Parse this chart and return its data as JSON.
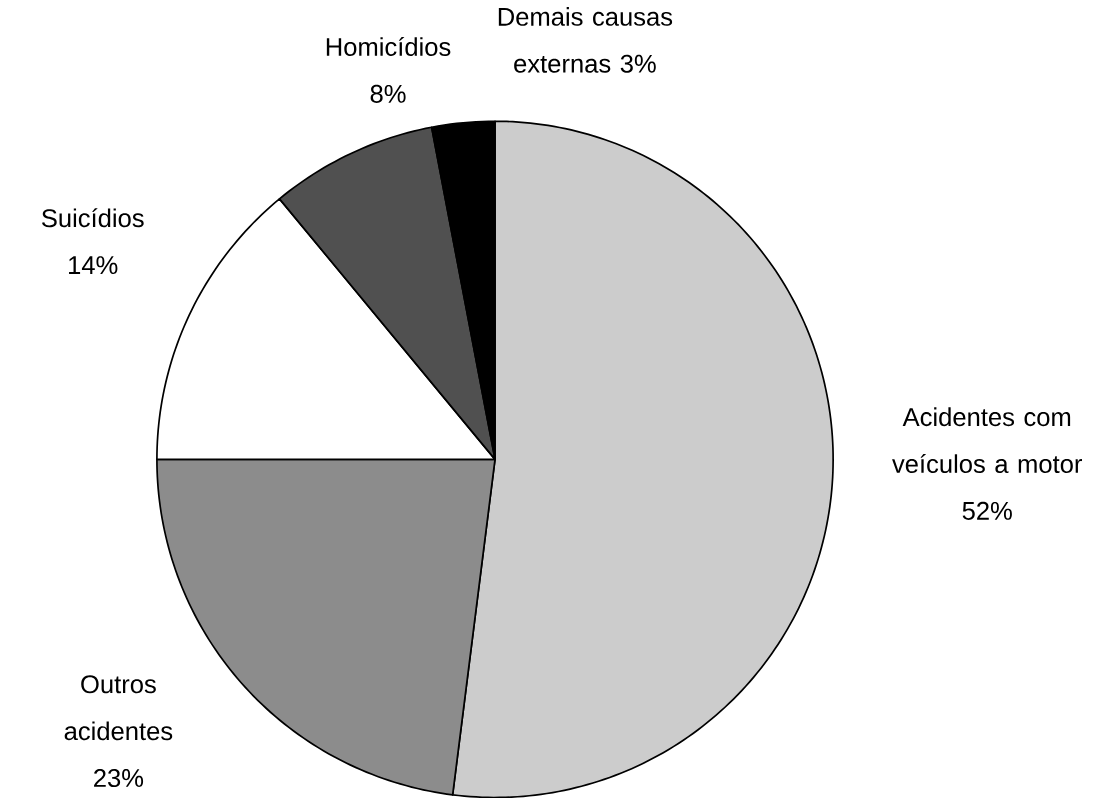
{
  "chart_data": {
    "type": "pie",
    "categories": [
      "Acidentes com veículos a motor",
      "Outros acidentes",
      "Suicídios",
      "Homicídios",
      "Demais causas externas"
    ],
    "values": [
      52,
      23,
      14,
      8,
      3
    ],
    "value_labels": [
      "52%",
      "23%",
      "14%",
      "8%",
      "3%"
    ],
    "colors": [
      "#cccccc",
      "#8c8c8c",
      "#ffffff",
      "#505050",
      "#000000"
    ]
  }
}
